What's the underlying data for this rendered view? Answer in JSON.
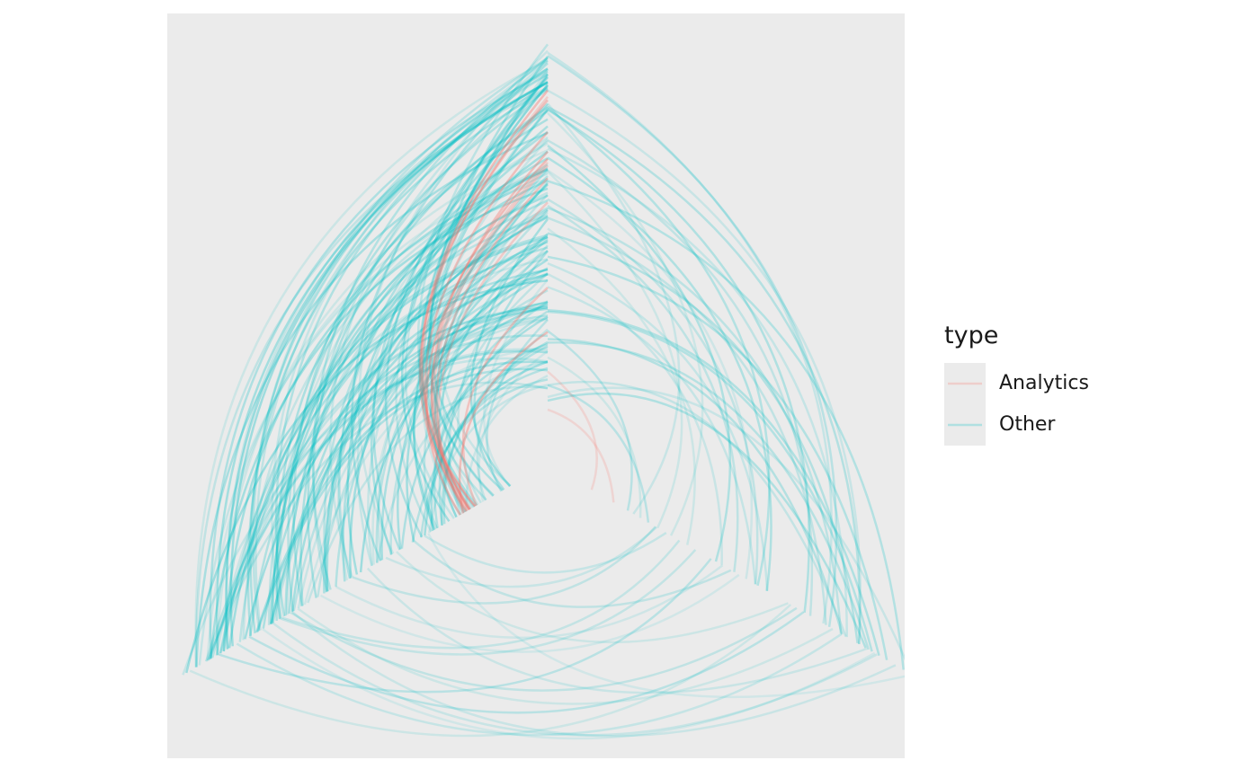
{
  "panel": {
    "background": "#ebebeb"
  },
  "legend": {
    "title": "type",
    "items": [
      {
        "label": "Analytics",
        "color": "#f8766d"
      },
      {
        "label": "Other",
        "color": "#00bfc4"
      }
    ]
  }
}
